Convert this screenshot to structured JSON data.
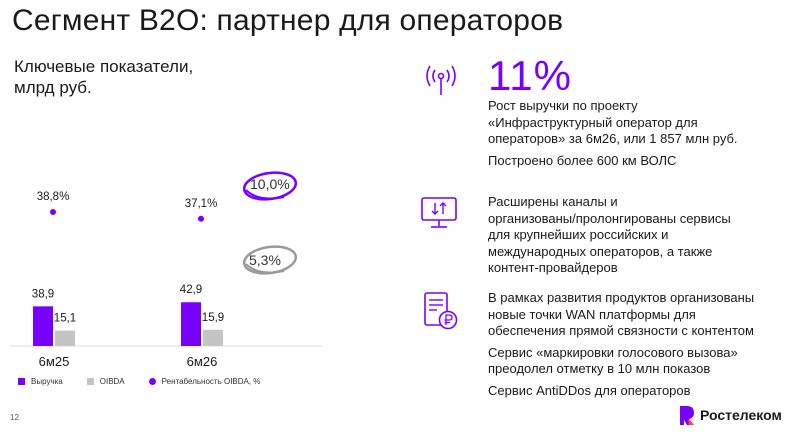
{
  "header": {
    "title": "Сегмент B2O: партнер для операторов"
  },
  "left": {
    "subtitle_line1": "Ключевые показатели,",
    "subtitle_line2": "млрд руб."
  },
  "chart_data": {
    "type": "bar",
    "title": "Ключевые показатели, млрд руб.",
    "categories": [
      "6м25",
      "6м26"
    ],
    "series": [
      {
        "name": "Выручка",
        "values": [
          38.9,
          42.9
        ],
        "labels": [
          "38,9",
          "42,9"
        ],
        "color": "#7700ff"
      },
      {
        "name": "OIBDA",
        "values": [
          15.1,
          15.9
        ],
        "labels": [
          "15,1",
          "15,9"
        ],
        "color": "#c4c4c4"
      },
      {
        "name": "Рентабельность OIBDA, %",
        "values": [
          38.8,
          37.1
        ],
        "labels": [
          "38,8%",
          "37,1%"
        ],
        "color": "#7700ff",
        "kind": "dot"
      }
    ],
    "growth_badges": [
      {
        "text": "10,0%",
        "series": "Выручка",
        "color": "#7700ff"
      },
      {
        "text": "5,3%",
        "series": "OIBDA",
        "color": "#9a9a9a"
      }
    ],
    "legend": [
      "Выручка",
      "OIBDA",
      "Рентабельность OIBDA, %"
    ],
    "legend_placement": "bottom"
  },
  "right": {
    "block1": {
      "big_value": "11%",
      "line1": "Рост выручки по проекту",
      "line2": "«Инфраструктурный оператор для",
      "line3": "операторов» за 6м26, или 1 857 млн руб.",
      "line4": "Построено более 600 км ВОЛС",
      "icon": "antenna-icon"
    },
    "block2": {
      "line1": "Расширены каналы и",
      "line2": "организованы/пролонгированы сервисы",
      "line3": "для крупнейших российских и",
      "line4": "международных операторов, а также",
      "line5": "контент-провайдеров",
      "icon": "monitor-transfer-icon"
    },
    "block3": {
      "line1": "В рамках развития продуктов организованы",
      "line2": "новые точки WAN платформы для",
      "line3": "обеспечения прямой связности с контентом",
      "line4": "Сервис «маркировки голосового вызова»",
      "line5": "преодолел отметку в 10 млн показов",
      "line6": "Сервис AntiDDos для операторов",
      "icon": "server-ruble-icon"
    },
    "accent_color": "#7700ff"
  },
  "footer": {
    "page_number": "12",
    "logo_text": "Ростелеком"
  }
}
